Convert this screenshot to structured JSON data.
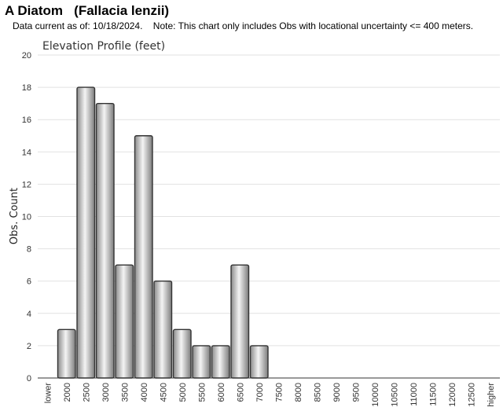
{
  "header": {
    "title": "A Diatom   (Fallacia lenzii)",
    "note": "Data current as of: 10/18/2024.    Note: This chart only includes Obs with locational uncertainty <= 400 meters."
  },
  "chart_data": {
    "type": "bar",
    "title": "Elevation Profile (feet)",
    "xlabel": "",
    "ylabel": "Obs. Count",
    "ylim": [
      0,
      20
    ],
    "yticks": [
      0,
      2,
      4,
      6,
      8,
      10,
      12,
      14,
      16,
      18,
      20
    ],
    "grid": true,
    "categories": [
      "lower",
      "2000",
      "2500",
      "3000",
      "3500",
      "4000",
      "4500",
      "5000",
      "5500",
      "6000",
      "6500",
      "7000",
      "7500",
      "8000",
      "8500",
      "9000",
      "9500",
      "10000",
      "10500",
      "11000",
      "11500",
      "12000",
      "12500",
      "higher"
    ],
    "values": [
      0,
      3,
      18,
      17,
      7,
      15,
      6,
      3,
      2,
      2,
      7,
      2,
      0,
      0,
      0,
      0,
      0,
      0,
      0,
      0,
      0,
      0,
      0,
      0
    ],
    "colors": {
      "bar_fill": "#b8b8b8",
      "bar_stroke": "#333333",
      "grid": "#e2e2e2"
    }
  }
}
